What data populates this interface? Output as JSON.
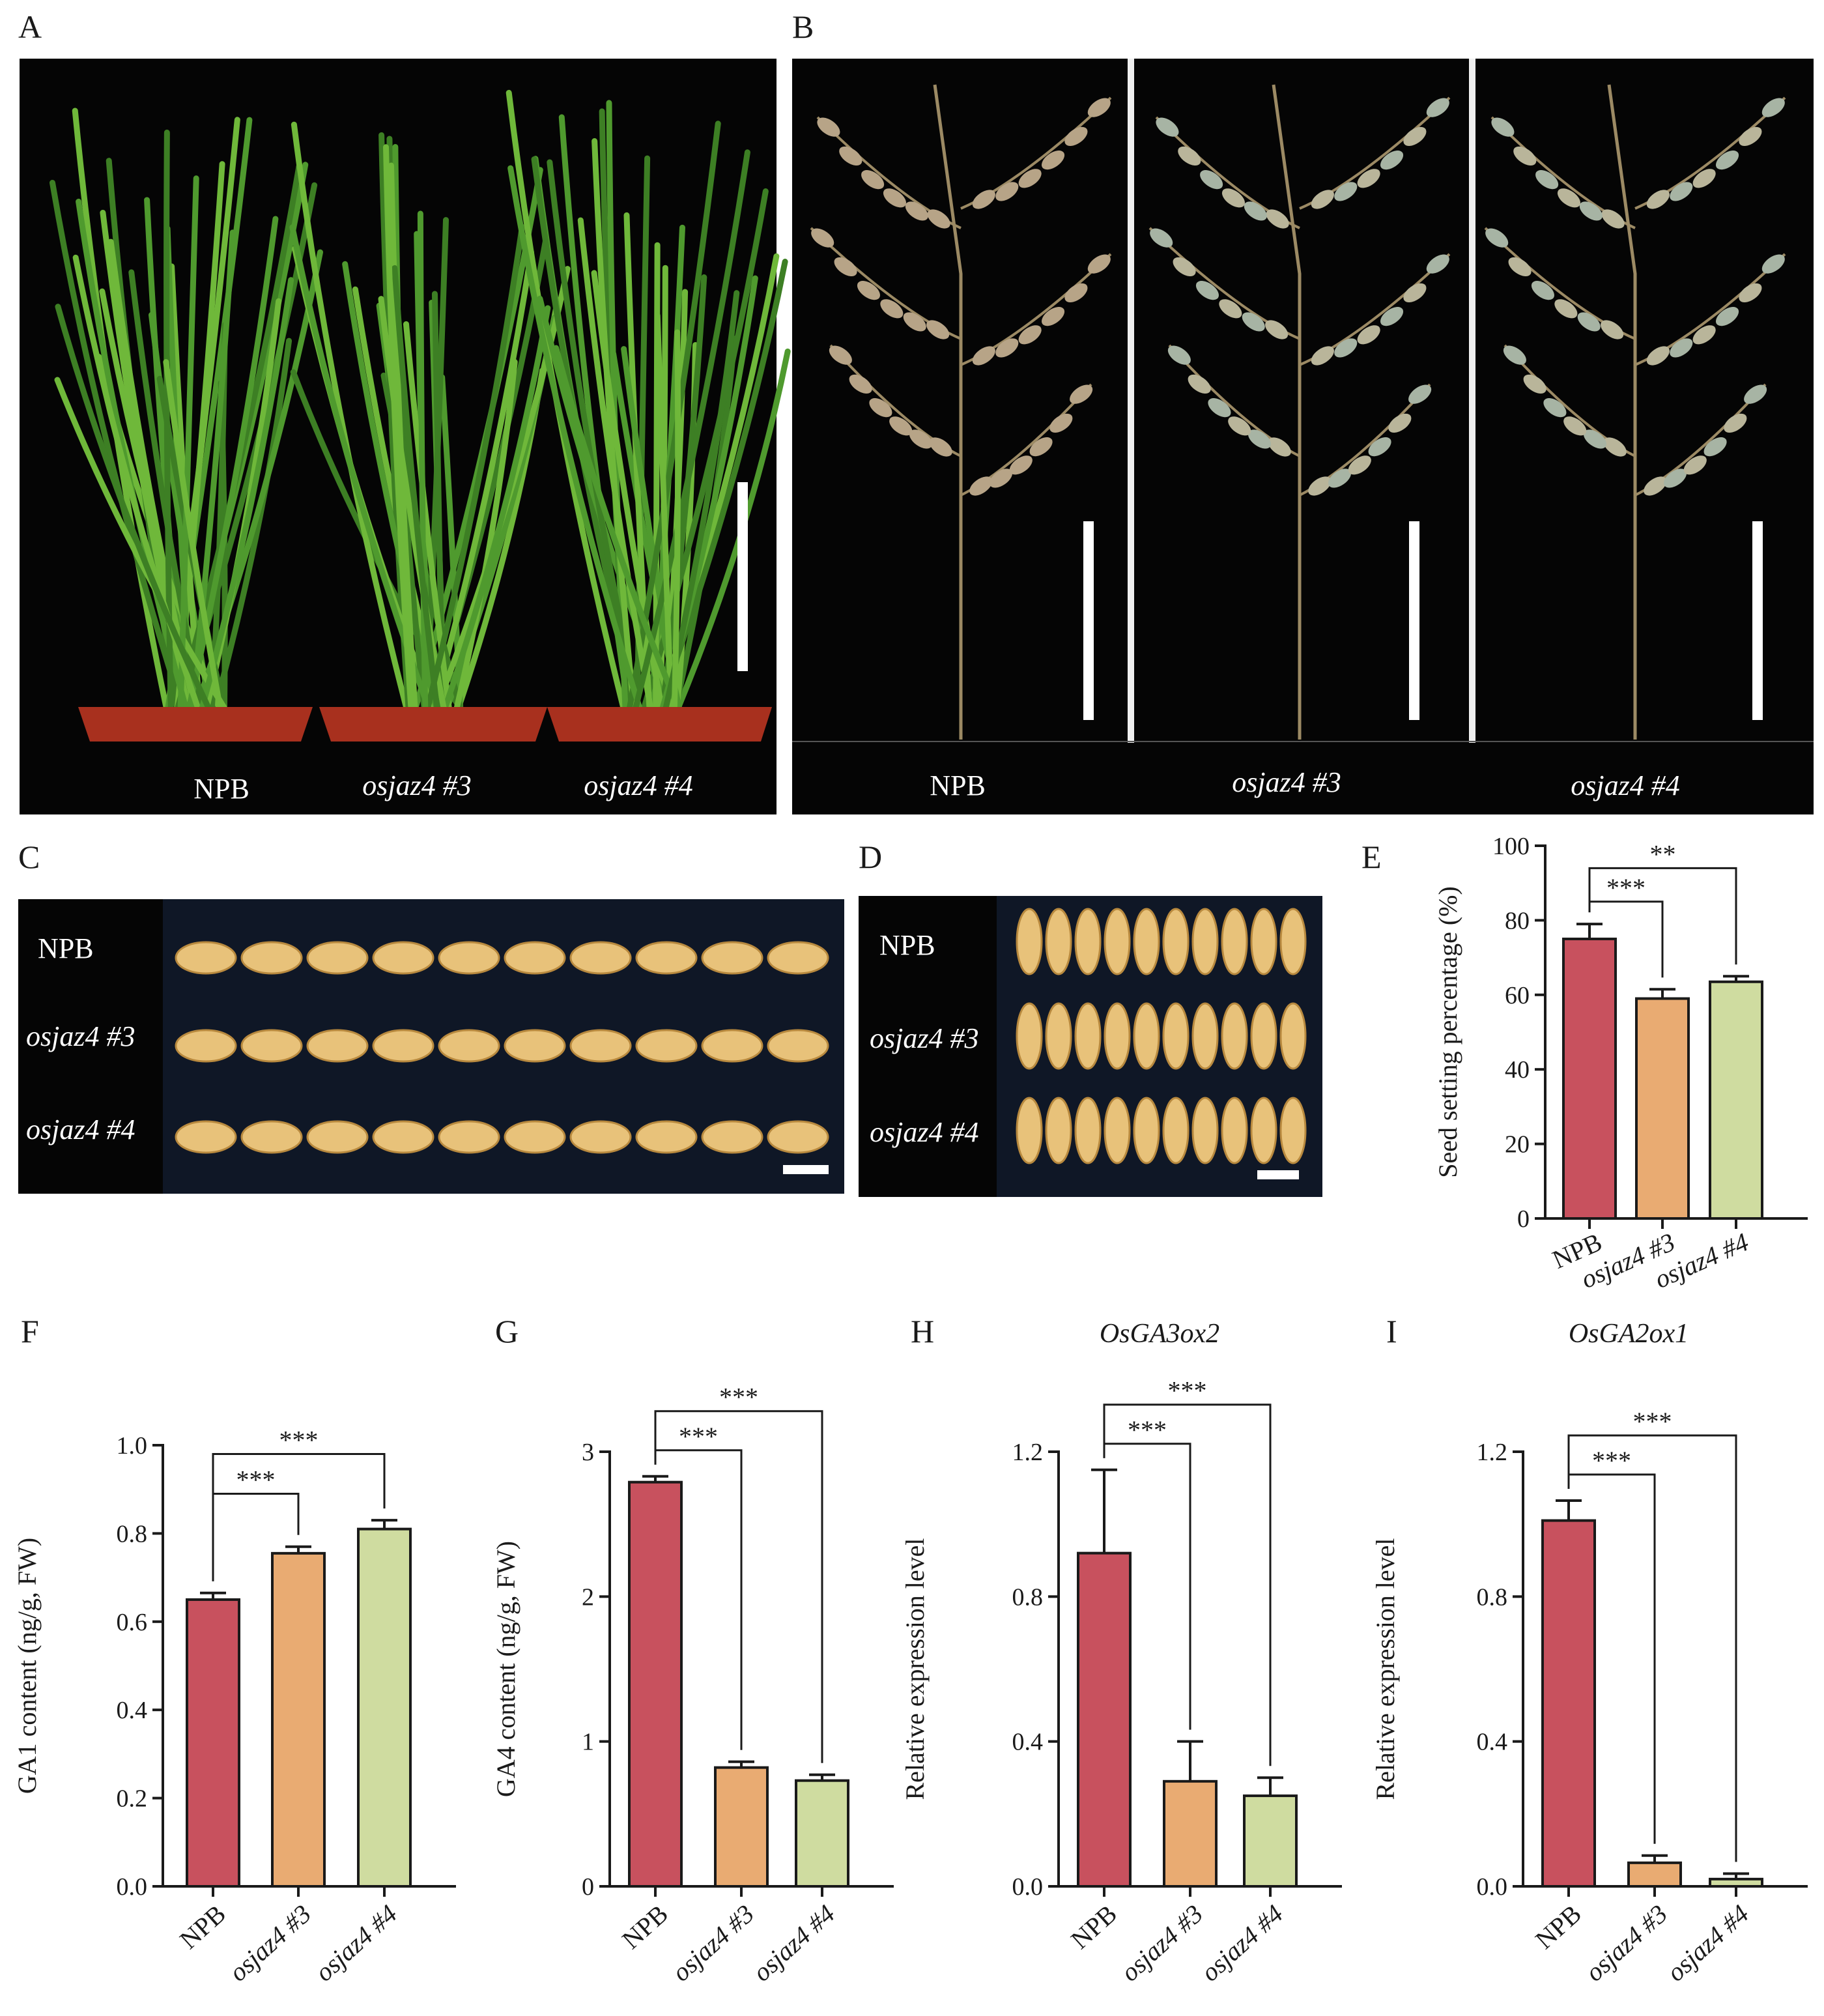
{
  "panels": {
    "a": {
      "letter": "A",
      "labels": [
        "NPB",
        "osjaz4 #3",
        "osjaz4 #4"
      ]
    },
    "b": {
      "letter": "B",
      "labels": [
        "NPB",
        "osjaz4 #3",
        "osjaz4 #4"
      ]
    },
    "c": {
      "letter": "C",
      "labels": [
        "NPB",
        "osjaz4 #3",
        "osjaz4 #4"
      ]
    },
    "d": {
      "letter": "D",
      "labels": [
        "NPB",
        "osjaz4 #3",
        "osjaz4 #4"
      ]
    }
  },
  "colors": {
    "npb": "#c8515e",
    "jaz3": "#e9ab72",
    "jaz4": "#cfdca0",
    "photo_bg": "#050505",
    "leaf": "#4f9a2e",
    "pot": "#a8301e",
    "grain": "#e8c27a",
    "panicle": "#b7a487"
  },
  "chart_data": [
    {
      "letter": "E",
      "type": "bar",
      "title": "",
      "ylabel": "Seed setting percentage (%)",
      "xlabel": "",
      "categories": [
        "NPB",
        "osjaz4 #3",
        "osjaz4 #4"
      ],
      "values": [
        75,
        59,
        63.5
      ],
      "errors": [
        4,
        2.5,
        1.5
      ],
      "ylim": [
        0,
        100
      ],
      "yticks": [
        "0",
        "20",
        "40",
        "60",
        "80",
        "100"
      ],
      "significance": [
        {
          "pair": [
            0,
            1
          ],
          "label": "***"
        },
        {
          "pair": [
            0,
            2
          ],
          "label": "**"
        }
      ]
    },
    {
      "letter": "F",
      "type": "bar",
      "title": "",
      "ylabel": "GA1 content (ng/g, FW)",
      "xlabel": "",
      "categories": [
        "NPB",
        "osjaz4 #3",
        "osjaz4 #4"
      ],
      "values": [
        0.65,
        0.755,
        0.81
      ],
      "errors": [
        0.015,
        0.015,
        0.02
      ],
      "ylim": [
        0,
        1.0
      ],
      "yticks": [
        "0.0",
        "0.2",
        "0.4",
        "0.6",
        "0.8",
        "1.0"
      ],
      "significance": [
        {
          "pair": [
            0,
            1
          ],
          "label": "***"
        },
        {
          "pair": [
            0,
            2
          ],
          "label": "***"
        }
      ]
    },
    {
      "letter": "G",
      "type": "bar",
      "title": "",
      "ylabel": "GA4 content (ng/g, FW)",
      "xlabel": "",
      "categories": [
        "NPB",
        "osjaz4 #3",
        "osjaz4 #4"
      ],
      "values": [
        2.79,
        0.82,
        0.73
      ],
      "errors": [
        0.04,
        0.04,
        0.04
      ],
      "ylim": [
        0,
        3
      ],
      "yticks": [
        "0",
        "1",
        "2",
        "3"
      ],
      "significance": [
        {
          "pair": [
            0,
            1
          ],
          "label": "***"
        },
        {
          "pair": [
            0,
            2
          ],
          "label": "***"
        }
      ]
    },
    {
      "letter": "H",
      "type": "bar",
      "title": "OsGA3ox2",
      "ylabel": "Relative expression level",
      "xlabel": "",
      "categories": [
        "NPB",
        "osjaz4 #3",
        "osjaz4 #4"
      ],
      "values": [
        0.92,
        0.29,
        0.25
      ],
      "errors": [
        0.23,
        0.11,
        0.05
      ],
      "ylim": [
        0,
        1.2
      ],
      "yticks": [
        "0.0",
        "0.4",
        "0.8",
        "1.2"
      ],
      "significance": [
        {
          "pair": [
            0,
            1
          ],
          "label": "***"
        },
        {
          "pair": [
            0,
            2
          ],
          "label": "***"
        }
      ]
    },
    {
      "letter": "I",
      "type": "bar",
      "title": "OsGA2ox1",
      "ylabel": "Relative expression level",
      "xlabel": "",
      "categories": [
        "NPB",
        "osjaz4 #3",
        "osjaz4 #4"
      ],
      "values": [
        1.01,
        0.065,
        0.02
      ],
      "errors": [
        0.055,
        0.02,
        0.015
      ],
      "ylim": [
        0,
        1.2
      ],
      "yticks": [
        "0.0",
        "0.4",
        "0.8",
        "1.2"
      ],
      "significance": [
        {
          "pair": [
            0,
            1
          ],
          "label": "***"
        },
        {
          "pair": [
            0,
            2
          ],
          "label": "***"
        }
      ]
    }
  ]
}
